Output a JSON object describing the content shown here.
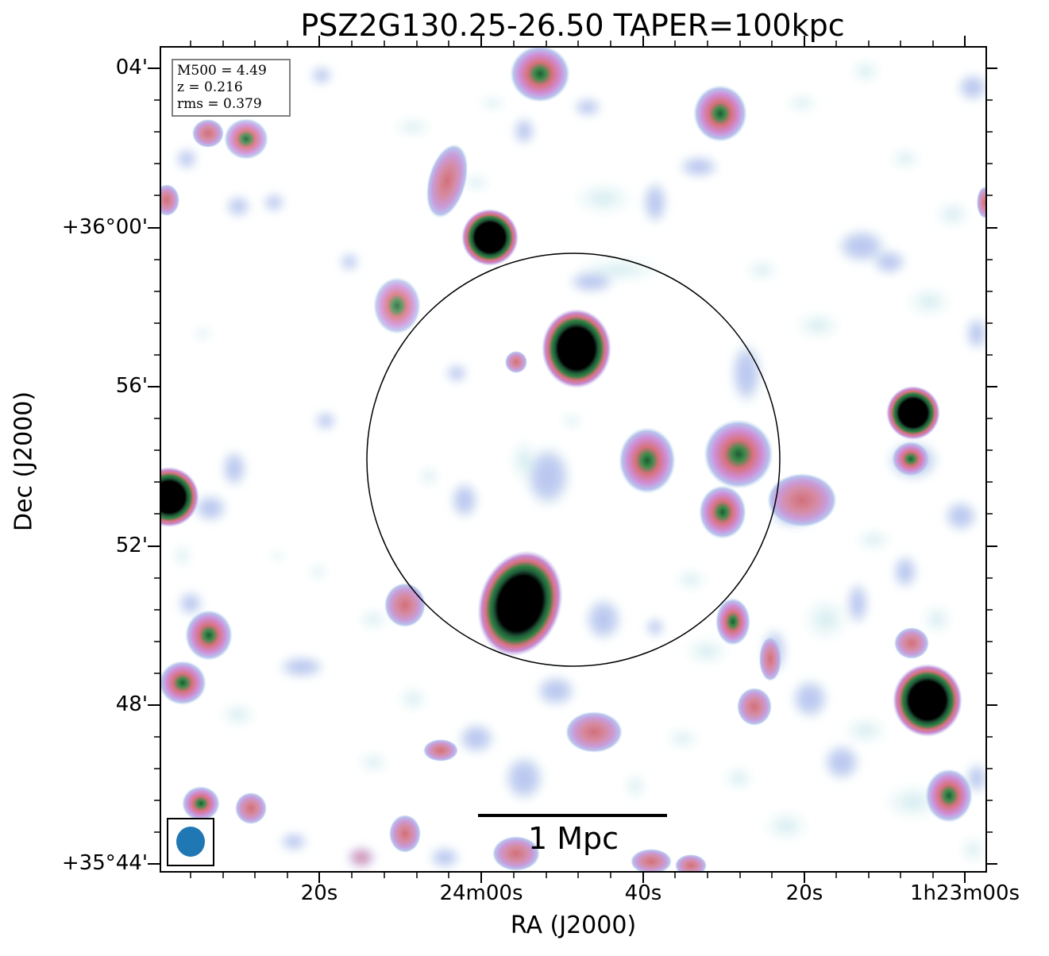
{
  "title": "PSZ2G130.25-26.50 TAPER=100kpc",
  "axes": {
    "xlabel": "RA (J2000)",
    "ylabel": "Dec (J2000)",
    "yticks": [
      "04'",
      "+36°00'",
      "56'",
      "52'",
      "48'",
      "+35°44'"
    ],
    "xticks": [
      "20s",
      "24m00s",
      "40s",
      "20s",
      "1h23m00s"
    ]
  },
  "info_box": {
    "line1": "M500 = 4.49",
    "line2": "z = 0.216",
    "line3": "rms = 0.379"
  },
  "scale_bar": {
    "label": "1 Mpc"
  },
  "colors": {
    "beam": "#1f77b4",
    "colormap": [
      "#ffffff",
      "#cfeaea",
      "#b3c2ef",
      "#c77fd0",
      "#d8707a",
      "#2e7d3a",
      "#000000"
    ]
  }
}
